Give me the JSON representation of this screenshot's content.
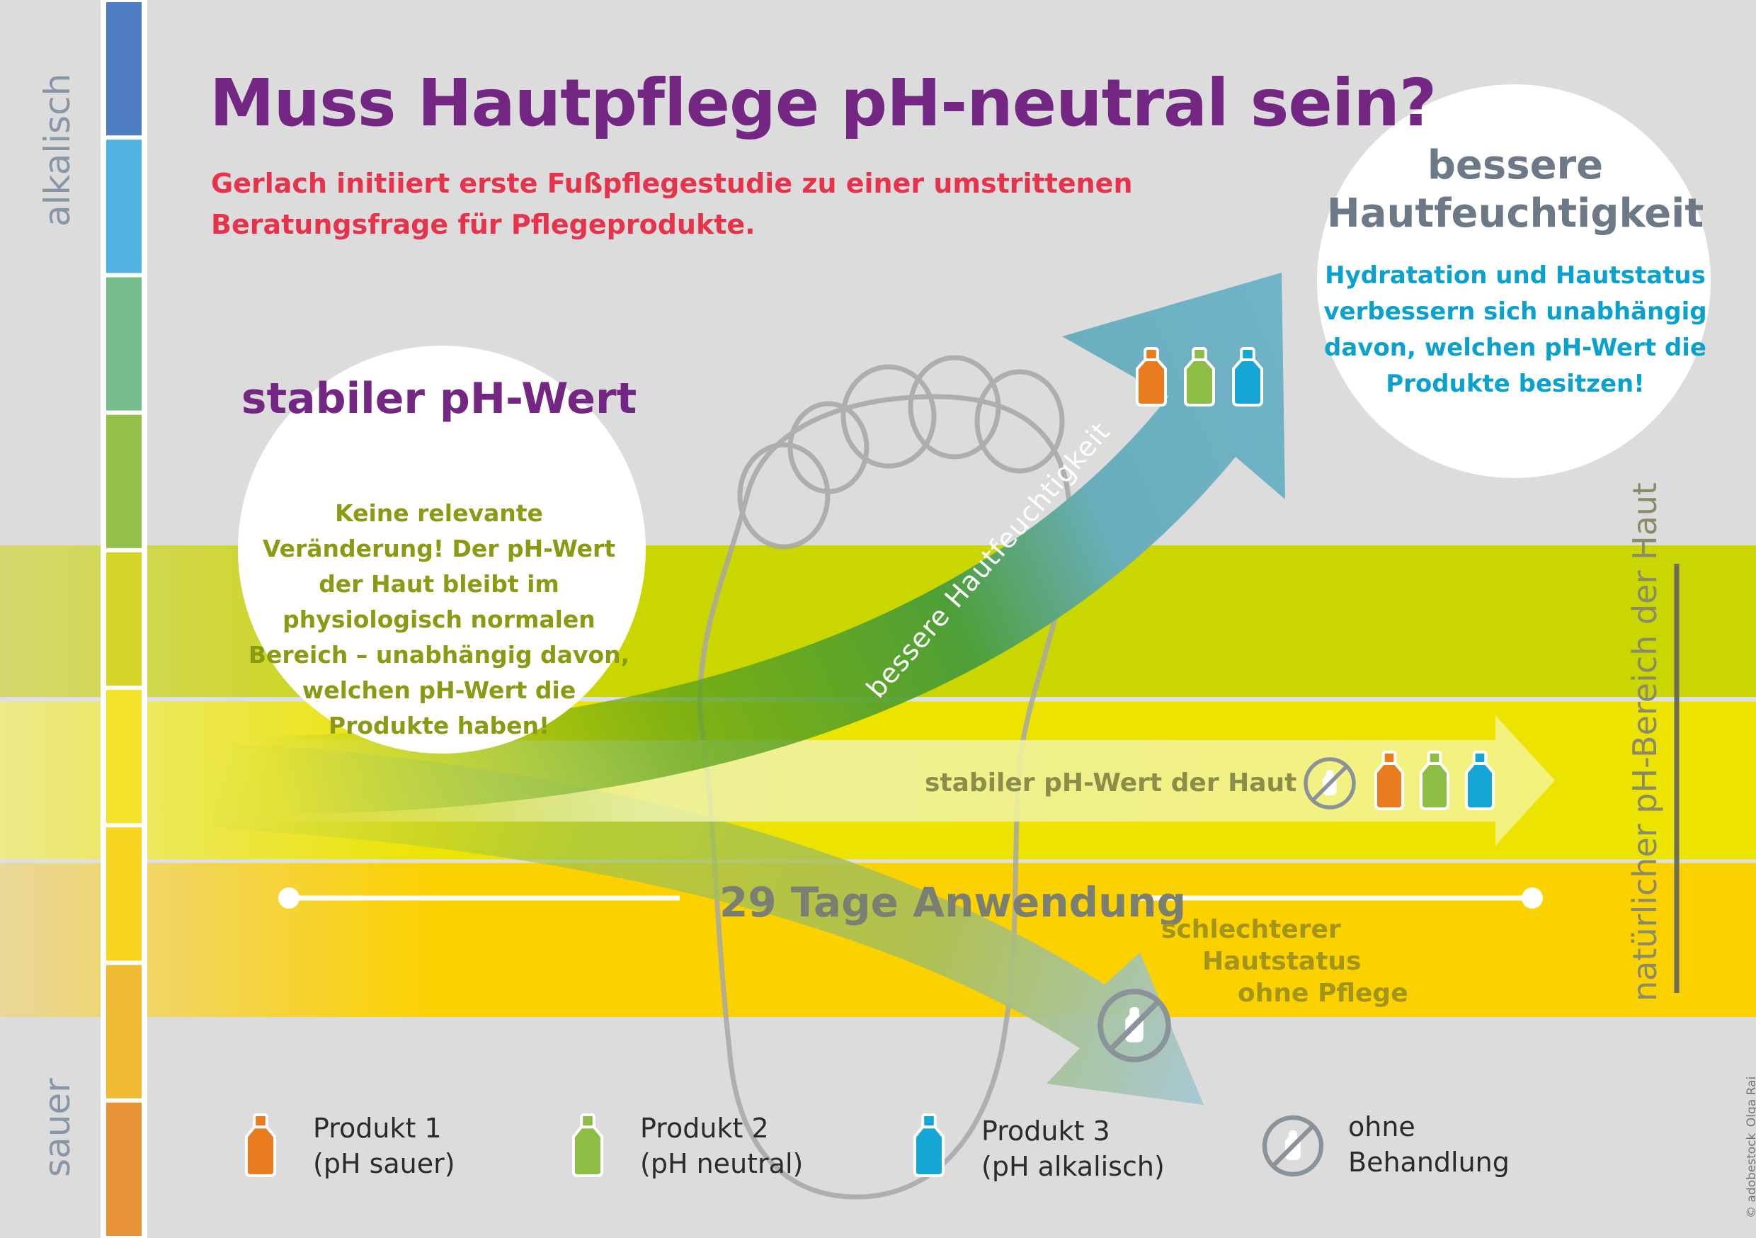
{
  "title": "Muss Hautpflege pH-neutral sein?",
  "subtitle": "Gerlach initiiert erste Fußpflegestudie zu einer umstrittenen Beratungsfrage für Pflegeprodukte.",
  "scale": {
    "top_label": "alkalisch",
    "bottom_label": "sauer",
    "colors": [
      "#4f7dc4",
      "#4fb2e1",
      "#77bd8c",
      "#93c14a",
      "#d6d52a",
      "#f2e32a",
      "#f7d521",
      "#f0b934",
      "#e69237"
    ]
  },
  "natural_range_label": "natürlicher pH-Bereich der Haut",
  "circle_stable": {
    "heading": "stabiler pH-Wert",
    "body": "Keine relevante Veränderung! Der pH-Wert der Haut bleibt im physiologisch normalen Bereich – unabhängig davon, welchen pH-Wert die Produkte haben!"
  },
  "circle_moisture": {
    "heading": "bessere Hautfeuchtigkeit",
    "body": "Hydratation und Hautstatus verbessern sich unabhängig davon, welchen pH-Wert die Produkte besitzen!"
  },
  "arrow_up_label": "bessere Hautfeuchtigkeit",
  "arrow_mid_label": "stabiler pH-Wert der Haut",
  "arrow_down_label": [
    "schlechterer",
    "Hautstatus",
    "ohne Pflege"
  ],
  "duration_label": "29 Tage Anwendung",
  "legend": [
    {
      "line1": "Produkt 1",
      "line2": "(pH sauer)",
      "color": "#e87c1e",
      "icon": "bottle-orange-icon"
    },
    {
      "line1": "Produkt 2",
      "line2": "(pH neutral)",
      "color": "#8dbd45",
      "icon": "bottle-green-icon"
    },
    {
      "line1": "Produkt 3",
      "line2": "(pH alkalisch)",
      "color": "#15a6d6",
      "icon": "bottle-blue-icon"
    },
    {
      "line1": "ohne",
      "line2": "Behandlung",
      "color": "#8b939a",
      "icon": "no-treatment-icon"
    }
  ],
  "credit": "© adobestock_Olga Rai"
}
